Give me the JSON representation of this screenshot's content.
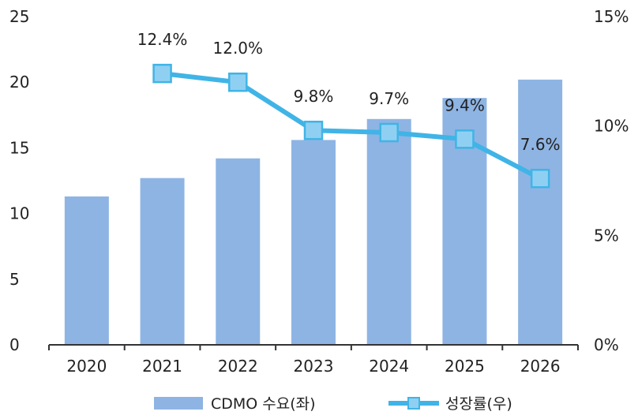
{
  "chart_data": {
    "type": "bar+line",
    "categories": [
      "2020",
      "2021",
      "2022",
      "2023",
      "2024",
      "2025",
      "2026"
    ],
    "series": [
      {
        "name": "CDMO 수요(좌)",
        "type": "bar",
        "axis": "left",
        "values": [
          11.3,
          12.7,
          14.2,
          15.6,
          17.2,
          18.8,
          20.2
        ],
        "color": "#8eb4e3"
      },
      {
        "name": "성장률(우)",
        "type": "line",
        "axis": "right",
        "values": [
          null,
          12.4,
          12.0,
          9.8,
          9.7,
          9.4,
          7.6
        ],
        "labels": [
          "",
          "12.4%",
          "12.0%",
          "9.8%",
          "9.7%",
          "9.4%",
          "7.6%"
        ],
        "color": "#40b4e6",
        "marker_fill": "#8fd0f2",
        "marker": "square"
      }
    ],
    "y_left": {
      "ticks": [
        "0",
        "5",
        "10",
        "15",
        "20",
        "25"
      ],
      "ylim": [
        0,
        25
      ]
    },
    "y_right": {
      "ticks": [
        "0%",
        "5%",
        "10%",
        "15%"
      ],
      "ylim": [
        0,
        15
      ]
    },
    "grid": false,
    "legend_position": "bottom"
  }
}
